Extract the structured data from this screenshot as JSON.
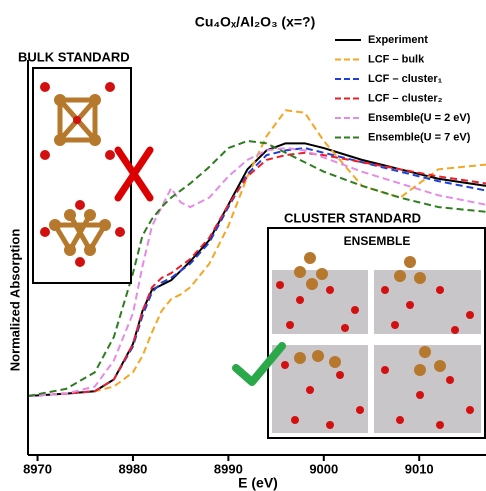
{
  "chart_data": {
    "type": "line",
    "title": "Cu₄Oₓ/Al₂O₃ (x=?)",
    "x_label": "E (eV)",
    "y_label": "Normalized Absorption",
    "x": [
      8969,
      8973,
      8976,
      8978,
      8980,
      8981,
      8982,
      8983,
      8984,
      8985,
      8986,
      8988,
      8990,
      8992,
      8994,
      8996,
      8998,
      9000,
      9004,
      9008,
      9012,
      9017
    ],
    "xlim": [
      8969,
      9017
    ],
    "xticks": [
      8970,
      8980,
      8990,
      9000,
      9010
    ],
    "ylim": [
      -0.25,
      1.55
    ],
    "legend": "upper right",
    "series": [
      {
        "name": "Experiment",
        "color": "#000000",
        "dashed": false,
        "values": [
          0,
          0.01,
          0.02,
          0.07,
          0.22,
          0.36,
          0.45,
          0.47,
          0.49,
          0.53,
          0.57,
          0.66,
          0.81,
          0.96,
          1.04,
          1.07,
          1.07,
          1.05,
          1.0,
          0.96,
          0.92,
          0.89
        ]
      },
      {
        "name": "LCF – bulk",
        "color": "#f5a623",
        "dashed": true,
        "values": [
          0,
          0.01,
          0.02,
          0.04,
          0.1,
          0.17,
          0.27,
          0.36,
          0.41,
          0.43,
          0.46,
          0.56,
          0.72,
          0.93,
          1.1,
          1.21,
          1.2,
          1.08,
          0.89,
          0.84,
          0.96,
          0.98
        ]
      },
      {
        "name": "LCF – cluster₁",
        "color": "#1f3fd6",
        "dashed": true,
        "values": [
          0,
          0.01,
          0.02,
          0.07,
          0.21,
          0.34,
          0.44,
          0.48,
          0.5,
          0.53,
          0.56,
          0.65,
          0.8,
          0.94,
          1.02,
          1.04,
          1.05,
          1.03,
          0.99,
          0.95,
          0.91,
          0.87
        ]
      },
      {
        "name": "LCF – cluster₂",
        "color": "#e8202a",
        "dashed": true,
        "values": [
          0,
          0.01,
          0.02,
          0.07,
          0.22,
          0.36,
          0.46,
          0.5,
          0.52,
          0.55,
          0.58,
          0.67,
          0.81,
          0.93,
          1.0,
          1.02,
          1.03,
          1.02,
          0.99,
          0.96,
          0.93,
          0.9
        ]
      },
      {
        "name": "Ensemble(U = 2 eV)",
        "color": "#e58be5",
        "dashed": true,
        "values": [
          0,
          0.01,
          0.04,
          0.15,
          0.35,
          0.55,
          0.72,
          0.8,
          0.88,
          0.82,
          0.8,
          0.84,
          0.93,
          1.0,
          1.04,
          1.05,
          1.04,
          1.01,
          0.95,
          0.9,
          0.85,
          0.81
        ]
      },
      {
        "name": "Ensemble(U = 7 eV)",
        "color": "#2e7d1f",
        "dashed": true,
        "values": [
          0,
          0.03,
          0.1,
          0.25,
          0.52,
          0.68,
          0.75,
          0.8,
          0.84,
          0.87,
          0.9,
          0.97,
          1.05,
          1.08,
          1.07,
          1.03,
          0.99,
          0.95,
          0.89,
          0.84,
          0.8,
          0.78
        ]
      }
    ],
    "insets": {
      "bulk": "BULK STANDARD",
      "cluster": "CLUSTER STANDARD",
      "ensemble": "ENSEMBLE"
    }
  }
}
